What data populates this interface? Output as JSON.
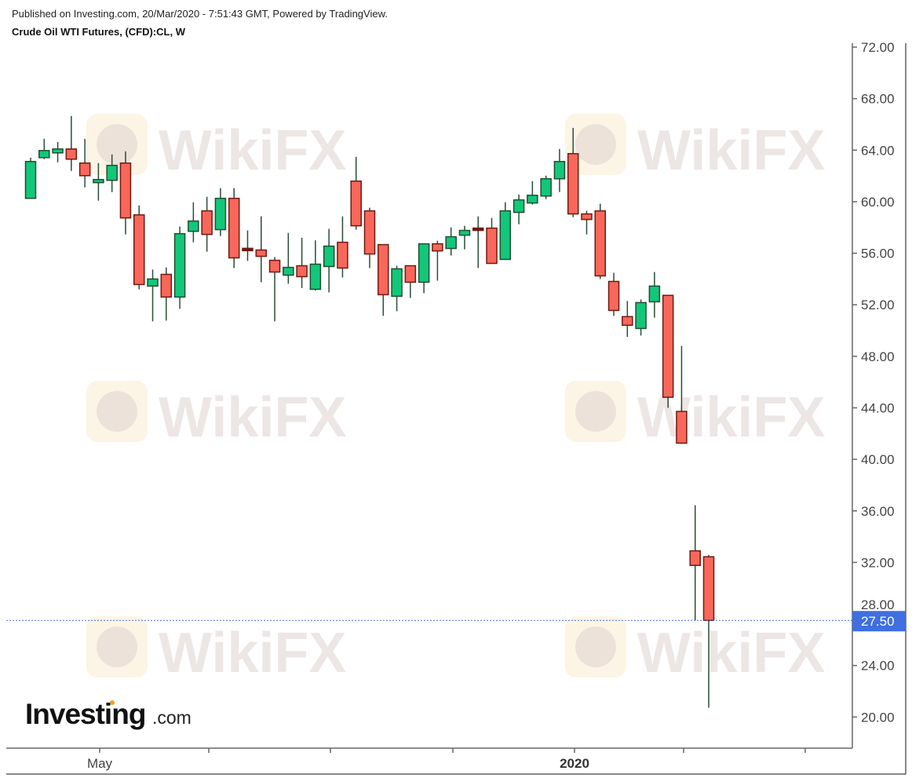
{
  "header": {
    "published": "Published on Investing.com, 20/Mar/2020 - 7:51:43 GMT, Powered by TradingView.",
    "instrument": "Crude Oil WTI Futures, (CFD):CL, W"
  },
  "branding": {
    "logo_main": "Investing",
    "logo_suffix": ".com",
    "watermark": "WikiFX"
  },
  "colors": {
    "up": "#12c77a",
    "up_border": "#1f4d2e",
    "down": "#f8675a",
    "down_border": "#6e1a12",
    "wick": "#2a4d36",
    "last_price": "#3f6fe0"
  },
  "chart_data": {
    "type": "candlestick",
    "title": "Crude Oil WTI Futures, (CFD):CL, W",
    "interval": "weekly",
    "ylim": [
      18,
      72
    ],
    "y_ticks": [
      "72.00",
      "68.00",
      "64.00",
      "60.00",
      "56.00",
      "52.00",
      "48.00",
      "44.00",
      "40.00",
      "36.00",
      "32.00",
      "28.00",
      "24.00",
      "20.00"
    ],
    "x_tick_labels": [
      "May",
      "",
      "",
      "",
      "2020",
      "",
      ""
    ],
    "last_price": "27.50",
    "grid": false,
    "ohlc": [
      [
        60.26,
        63.42,
        60.26,
        63.12
      ],
      [
        63.42,
        64.88,
        63.3,
        63.97
      ],
      [
        63.79,
        64.64,
        63.06,
        64.09
      ],
      [
        64.09,
        66.65,
        62.39,
        63.3
      ],
      [
        63.0,
        64.88,
        61.11,
        62.02
      ],
      [
        61.48,
        63.0,
        60.08,
        61.72
      ],
      [
        61.66,
        63.67,
        60.75,
        62.82
      ],
      [
        63.0,
        63.91,
        57.46,
        58.74
      ],
      [
        58.98,
        59.71,
        53.2,
        53.57
      ],
      [
        53.45,
        54.73,
        50.71,
        54.0
      ],
      [
        54.36,
        54.9,
        50.77,
        52.6
      ],
      [
        52.6,
        58.07,
        51.68,
        57.52
      ],
      [
        57.7,
        59.96,
        56.85,
        58.5
      ],
      [
        59.29,
        60.38,
        56.12,
        57.46
      ],
      [
        57.83,
        61.05,
        57.34,
        60.26
      ],
      [
        60.26,
        61.05,
        54.85,
        55.64
      ],
      [
        56.33,
        57.77,
        55.4,
        56.25
      ],
      [
        56.25,
        58.86,
        53.75,
        55.76
      ],
      [
        55.45,
        55.7,
        50.71,
        54.54
      ],
      [
        54.3,
        57.58,
        53.63,
        54.9
      ],
      [
        55.03,
        57.2,
        53.3,
        54.18
      ],
      [
        53.2,
        57.0,
        53.1,
        55.15
      ],
      [
        54.97,
        57.89,
        52.96,
        56.55
      ],
      [
        56.85,
        58.86,
        54.12,
        54.85
      ],
      [
        61.6,
        63.48,
        57.83,
        58.13
      ],
      [
        59.29,
        59.53,
        54.85,
        55.94
      ],
      [
        56.67,
        56.67,
        51.14,
        52.78
      ],
      [
        52.66,
        55.03,
        51.5,
        54.79
      ],
      [
        55.03,
        55.03,
        52.53,
        53.75
      ],
      [
        53.75,
        56.73,
        52.9,
        56.73
      ],
      [
        56.73,
        56.97,
        53.87,
        56.18
      ],
      [
        56.37,
        58.0,
        55.82,
        57.28
      ],
      [
        57.4,
        58.13,
        56.3,
        57.77
      ],
      [
        57.89,
        58.86,
        54.85,
        57.83
      ],
      [
        57.95,
        58.74,
        55.21,
        55.21
      ],
      [
        55.52,
        59.96,
        55.52,
        59.29
      ],
      [
        59.17,
        60.56,
        58.25,
        60.14
      ],
      [
        59.9,
        61.6,
        59.78,
        60.5
      ],
      [
        60.44,
        62.02,
        60.2,
        61.78
      ],
      [
        61.78,
        64.09,
        60.75,
        63.12
      ],
      [
        63.73,
        65.73,
        58.8,
        59.05
      ],
      [
        59.05,
        59.29,
        57.46,
        58.62
      ],
      [
        59.29,
        59.84,
        54.0,
        54.24
      ],
      [
        53.81,
        54.48,
        51.14,
        51.56
      ],
      [
        51.08,
        52.29,
        49.5,
        50.41
      ],
      [
        50.16,
        52.41,
        49.61,
        52.17
      ],
      [
        52.23,
        54.54,
        51.0,
        53.45
      ],
      [
        52.73,
        52.73,
        44.0,
        44.82
      ],
      [
        43.72,
        48.8,
        41.2,
        41.26
      ],
      [
        32.9,
        36.44,
        27.5,
        31.77
      ],
      [
        32.44,
        32.58,
        20.72,
        27.5
      ]
    ]
  }
}
